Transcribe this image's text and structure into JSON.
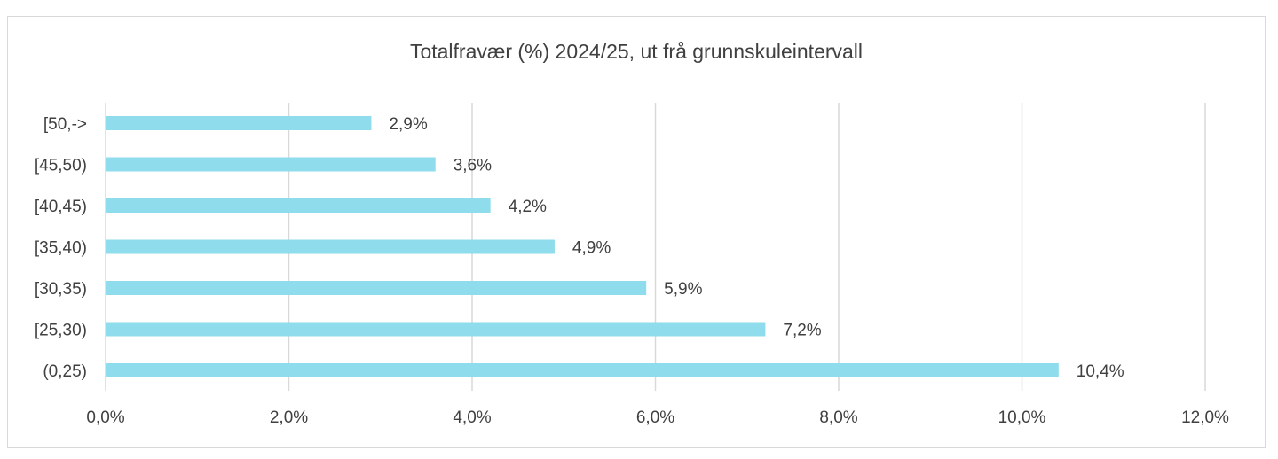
{
  "chart_data": {
    "type": "bar",
    "orientation": "horizontal",
    "title": "Totalfravær (%) 2024/25, ut frå grunnskuleintervall",
    "xlabel": "",
    "ylabel": "",
    "categories": [
      "[50,->",
      "[45,50)",
      "[40,45)",
      "[35,40)",
      "[30,35)",
      "[25,30)",
      "(0,25)"
    ],
    "values": [
      2.9,
      3.6,
      4.2,
      4.9,
      5.9,
      7.2,
      10.4
    ],
    "data_labels": [
      "2,9%",
      "3,6%",
      "4,2%",
      "4,9%",
      "5,9%",
      "7,2%",
      "10,4%"
    ],
    "xlim": [
      0,
      12
    ],
    "x_ticks": [
      0,
      2,
      4,
      6,
      8,
      10,
      12
    ],
    "x_tick_labels": [
      "0,0%",
      "2,0%",
      "4,0%",
      "6,0%",
      "8,0%",
      "10,0%",
      "12,0%"
    ],
    "grid": "vertical",
    "legend": "none",
    "bar_color": "#8fdcec",
    "grid_color": "#d9d9d9"
  }
}
